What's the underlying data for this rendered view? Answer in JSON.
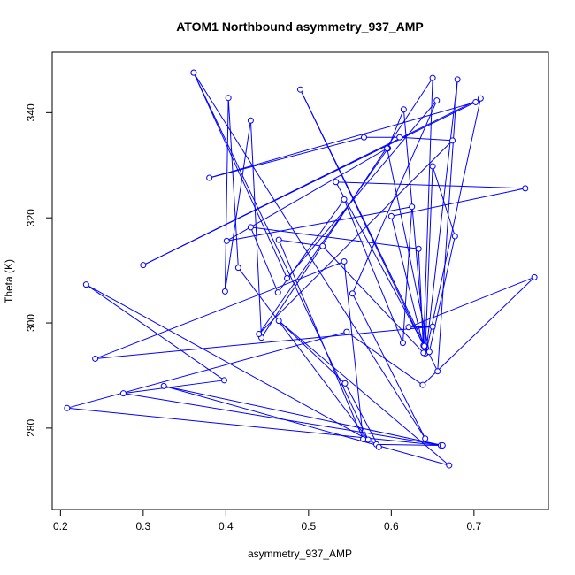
{
  "chart_data": {
    "type": "line",
    "title": "ATOM1 Northbound asymmetry_937_AMP",
    "xlabel": "asymmetry_937_AMP",
    "ylabel": "Theta (K)",
    "xlim": [
      0.19,
      0.79
    ],
    "ylim": [
      264.5,
      351.5
    ],
    "xticks": [
      0.2,
      0.3,
      0.4,
      0.5,
      0.6,
      0.7
    ],
    "xtick_labels": [
      "0.2",
      "0.3",
      "0.4",
      "0.5",
      "0.6",
      "0.7"
    ],
    "yticks": [
      280,
      300,
      320,
      340
    ],
    "ytick_labels": [
      "280",
      "300",
      "320",
      "340"
    ],
    "grid": false,
    "line_color": "#0000ff",
    "marker": "open-circle",
    "points": [
      {
        "x": 0.361,
        "y": 347.6
      },
      {
        "x": 0.474,
        "y": 308.5
      },
      {
        "x": 0.655,
        "y": 342.3
      },
      {
        "x": 0.553,
        "y": 305.6
      },
      {
        "x": 0.641,
        "y": 278.0
      },
      {
        "x": 0.361,
        "y": 347.6
      },
      {
        "x": 0.572,
        "y": 277.8
      },
      {
        "x": 0.415,
        "y": 310.5
      },
      {
        "x": 0.403,
        "y": 342.8
      },
      {
        "x": 0.399,
        "y": 306.0
      },
      {
        "x": 0.43,
        "y": 338.5
      },
      {
        "x": 0.443,
        "y": 297.2
      },
      {
        "x": 0.65,
        "y": 346.6
      },
      {
        "x": 0.639,
        "y": 295.7
      },
      {
        "x": 0.49,
        "y": 344.4
      },
      {
        "x": 0.656,
        "y": 290.8
      },
      {
        "x": 0.68,
        "y": 346.3
      },
      {
        "x": 0.642,
        "y": 294.3
      },
      {
        "x": 0.708,
        "y": 342.7
      },
      {
        "x": 0.3,
        "y": 311.0
      },
      {
        "x": 0.702,
        "y": 342.0
      },
      {
        "x": 0.38,
        "y": 327.6
      },
      {
        "x": 0.567,
        "y": 335.3
      },
      {
        "x": 0.61,
        "y": 335.3
      },
      {
        "x": 0.674,
        "y": 334.7
      },
      {
        "x": 0.44,
        "y": 297.9
      },
      {
        "x": 0.596,
        "y": 333.2
      },
      {
        "x": 0.615,
        "y": 340.6
      },
      {
        "x": 0.64,
        "y": 295.6
      },
      {
        "x": 0.533,
        "y": 326.8
      },
      {
        "x": 0.762,
        "y": 325.6
      },
      {
        "x": 0.6,
        "y": 320.3
      },
      {
        "x": 0.641,
        "y": 294.2
      },
      {
        "x": 0.65,
        "y": 329.8
      },
      {
        "x": 0.677,
        "y": 316.5
      },
      {
        "x": 0.646,
        "y": 294.5
      },
      {
        "x": 0.595,
        "y": 333.2
      },
      {
        "x": 0.401,
        "y": 315.6
      },
      {
        "x": 0.625,
        "y": 322.1
      },
      {
        "x": 0.614,
        "y": 296.2
      },
      {
        "x": 0.543,
        "y": 323.5
      },
      {
        "x": 0.463,
        "y": 305.8
      },
      {
        "x": 0.43,
        "y": 318.2
      },
      {
        "x": 0.633,
        "y": 314.1
      },
      {
        "x": 0.639,
        "y": 294.3
      },
      {
        "x": 0.517,
        "y": 314.6
      },
      {
        "x": 0.464,
        "y": 315.8
      },
      {
        "x": 0.566,
        "y": 277.9
      },
      {
        "x": 0.543,
        "y": 311.7
      },
      {
        "x": 0.242,
        "y": 293.2
      },
      {
        "x": 0.65,
        "y": 299.3
      },
      {
        "x": 0.621,
        "y": 299.2
      },
      {
        "x": 0.773,
        "y": 308.7
      },
      {
        "x": 0.638,
        "y": 288.2
      },
      {
        "x": 0.546,
        "y": 298.3
      },
      {
        "x": 0.208,
        "y": 283.8
      },
      {
        "x": 0.66,
        "y": 276.7
      },
      {
        "x": 0.582,
        "y": 276.9
      },
      {
        "x": 0.231,
        "y": 307.3
      },
      {
        "x": 0.398,
        "y": 289.1
      },
      {
        "x": 0.276,
        "y": 286.6
      },
      {
        "x": 0.662,
        "y": 276.7
      },
      {
        "x": 0.325,
        "y": 288.0
      },
      {
        "x": 0.67,
        "y": 272.9
      },
      {
        "x": 0.464,
        "y": 300.4
      },
      {
        "x": 0.544,
        "y": 288.5
      },
      {
        "x": 0.585,
        "y": 276.4
      }
    ]
  }
}
